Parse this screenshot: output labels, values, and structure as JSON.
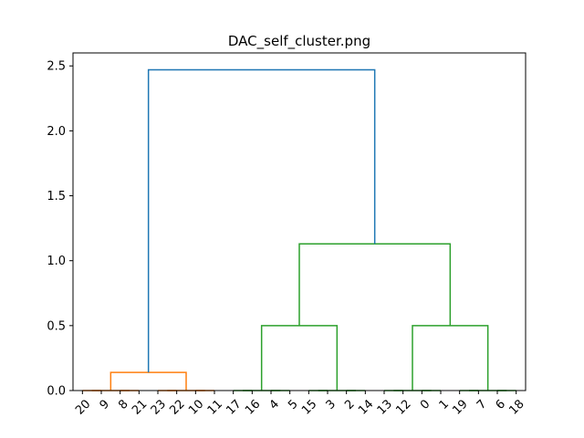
{
  "chart_data": {
    "type": "dendrogram",
    "title": "DAC_self_cluster.png",
    "xlabel": "",
    "ylabel": "",
    "ylim": [
      0,
      2.6
    ],
    "yticks": [
      "0.0",
      "0.5",
      "1.0",
      "1.5",
      "2.0",
      "2.5"
    ],
    "leaf_order": [
      "20",
      "9",
      "8",
      "21",
      "23",
      "22",
      "10",
      "11",
      "17",
      "16",
      "4",
      "5",
      "15",
      "3",
      "2",
      "14",
      "13",
      "12",
      "0",
      "1",
      "19",
      "7",
      "6",
      "18"
    ],
    "colors": {
      "root": "#1f77b4",
      "cluster1": "#ff7f0e",
      "cluster2": "#2ca02c"
    },
    "links": [
      {
        "from": [
          0,
          1
        ],
        "height": 0.0,
        "color": "cluster1"
      },
      {
        "from": [
          2,
          3
        ],
        "height": 0.0,
        "color": "cluster1"
      },
      {
        "from": [
          4,
          5
        ],
        "height": 0.0,
        "color": "cluster1"
      },
      {
        "from": [
          6,
          7
        ],
        "height": 0.0,
        "color": "cluster1"
      },
      {
        "from": [
          0.5,
          2.5
        ],
        "height": 0.0,
        "color": "cluster1"
      },
      {
        "from": [
          4.5,
          6.5
        ],
        "height": 0.0,
        "color": "cluster1"
      },
      {
        "from": [
          1.5,
          5.5
        ],
        "height": 0.14,
        "color": "cluster1"
      },
      {
        "from": [
          8,
          9
        ],
        "height": 0.0,
        "color": "cluster2"
      },
      {
        "from": [
          10,
          11
        ],
        "height": 0.0,
        "color": "cluster2"
      },
      {
        "from": [
          8.5,
          10.5
        ],
        "height": 0.0,
        "color": "cluster2"
      },
      {
        "from": [
          12,
          13
        ],
        "height": 0.0,
        "color": "cluster2"
      },
      {
        "from": [
          14,
          15
        ],
        "height": 0.0,
        "color": "cluster2"
      },
      {
        "from": [
          12.5,
          14.5
        ],
        "height": 0.0,
        "color": "cluster2"
      },
      {
        "from": [
          9.5,
          13.5
        ],
        "height": 0.5,
        "color": "cluster2"
      },
      {
        "from": [
          16,
          17
        ],
        "height": 0.0,
        "color": "cluster2"
      },
      {
        "from": [
          18,
          19
        ],
        "height": 0.0,
        "color": "cluster2"
      },
      {
        "from": [
          16.5,
          18.5
        ],
        "height": 0.0,
        "color": "cluster2"
      },
      {
        "from": [
          20,
          21
        ],
        "height": 0.0,
        "color": "cluster2"
      },
      {
        "from": [
          22,
          23
        ],
        "height": 0.0,
        "color": "cluster2"
      },
      {
        "from": [
          20.5,
          22.5
        ],
        "height": 0.0,
        "color": "cluster2"
      },
      {
        "from": [
          17.5,
          21.5
        ],
        "height": 0.5,
        "color": "cluster2"
      },
      {
        "from": [
          11.5,
          19.5
        ],
        "height": 1.13,
        "color": "cluster2"
      },
      {
        "from": [
          3.5,
          15.5
        ],
        "height": 2.47,
        "color": "root"
      }
    ],
    "link_child_heights": [
      [
        0,
        0
      ],
      [
        0,
        0
      ],
      [
        0,
        0
      ],
      [
        0,
        0
      ],
      [
        0,
        0
      ],
      [
        0,
        0
      ],
      [
        0,
        0
      ],
      [
        0,
        0
      ],
      [
        0,
        0
      ],
      [
        0,
        0
      ],
      [
        0,
        0
      ],
      [
        0,
        0
      ],
      [
        0,
        0
      ],
      [
        0,
        0
      ],
      [
        0,
        0
      ],
      [
        0,
        0
      ],
      [
        0,
        0
      ],
      [
        0,
        0
      ],
      [
        0,
        0
      ],
      [
        0,
        0
      ],
      [
        0,
        0
      ],
      [
        0.5,
        0.5
      ],
      [
        0.14,
        1.13
      ]
    ],
    "grid": false,
    "legend": "none"
  }
}
